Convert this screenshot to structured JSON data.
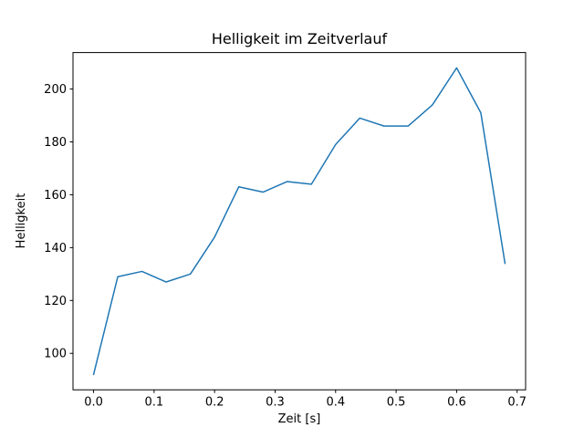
{
  "figure": {
    "background": "#ffffff"
  },
  "chart_data": {
    "type": "line",
    "title": "Helligkeit im Zeitverlauf",
    "xlabel": "Zeit [s]",
    "ylabel": "Helligkeit",
    "x": [
      0.0,
      0.04,
      0.08,
      0.12,
      0.16,
      0.2,
      0.24,
      0.28,
      0.32,
      0.36,
      0.4,
      0.44,
      0.48,
      0.52,
      0.56,
      0.6,
      0.64,
      0.68
    ],
    "y": [
      92,
      129,
      131,
      127,
      130,
      144,
      163,
      161,
      165,
      164,
      179,
      189,
      186,
      186,
      194,
      208,
      191,
      134
    ],
    "xlim": [
      -0.034,
      0.714
    ],
    "ylim": [
      86.2,
      213.8
    ],
    "xticks": [
      0.0,
      0.1,
      0.2,
      0.3,
      0.4,
      0.5,
      0.6,
      0.7
    ],
    "xtick_labels": [
      "0.0",
      "0.1",
      "0.2",
      "0.3",
      "0.4",
      "0.5",
      "0.6",
      "0.7"
    ],
    "yticks": [
      100,
      120,
      140,
      160,
      180,
      200
    ],
    "ytick_labels": [
      "100",
      "120",
      "140",
      "160",
      "180",
      "200"
    ],
    "line_color": "#1f77b4",
    "line_width": 1.5,
    "spine_color": "#000000",
    "grid": false,
    "legend": null
  }
}
